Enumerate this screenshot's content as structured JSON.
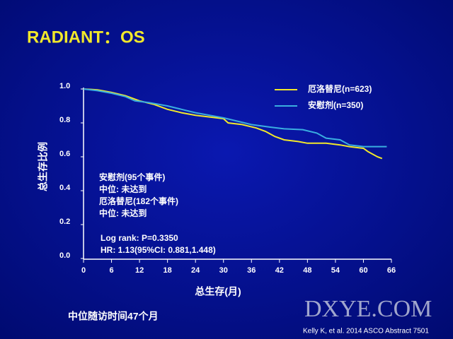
{
  "chart_data": {
    "type": "line",
    "title": "RADIANT：OS",
    "xlabel": "总生存(月)",
    "ylabel": "总生存比例",
    "xlim": [
      0,
      66
    ],
    "ylim": [
      0,
      1
    ],
    "xticks": [
      0,
      6,
      12,
      18,
      24,
      30,
      36,
      42,
      48,
      54,
      60,
      66
    ],
    "yticks": [
      {
        "value": 0,
        "label": "0.0"
      },
      0.2,
      0.4,
      0.6,
      0.8,
      {
        "value": 1,
        "label": "1.0"
      }
    ],
    "legend": "upper right",
    "series": [
      {
        "name": "厄洛替尼(n=623)",
        "color": "#f2e82a",
        "x": [
          0,
          3,
          6,
          9,
          12,
          15,
          18,
          21,
          24,
          27,
          30,
          31,
          34,
          37,
          39,
          41,
          43,
          46,
          48,
          52,
          55,
          57,
          60,
          61,
          63,
          64
        ],
        "values": [
          1.0,
          0.995,
          0.98,
          0.96,
          0.93,
          0.91,
          0.88,
          0.86,
          0.845,
          0.835,
          0.825,
          0.8,
          0.79,
          0.77,
          0.75,
          0.72,
          0.7,
          0.69,
          0.68,
          0.68,
          0.67,
          0.66,
          0.65,
          0.63,
          0.6,
          0.59
        ]
      },
      {
        "name": "安慰剂(n=350)",
        "color": "#3aaee0",
        "x": [
          0,
          3,
          6,
          9,
          11,
          14,
          18,
          21,
          24,
          27,
          30,
          33,
          36,
          40,
          43,
          47,
          50,
          52,
          55,
          57,
          60,
          63,
          65
        ],
        "values": [
          1.0,
          0.99,
          0.975,
          0.955,
          0.93,
          0.92,
          0.9,
          0.88,
          0.86,
          0.845,
          0.83,
          0.81,
          0.79,
          0.775,
          0.765,
          0.76,
          0.74,
          0.71,
          0.7,
          0.67,
          0.66,
          0.66,
          0.66
        ]
      }
    ],
    "annotations": [
      "安慰剂(95个事件)",
      "中位: 未达到",
      "厄洛替尼(182个事件)",
      "中位: 未达到",
      "Log rank: P=0.3350",
      "HR: 1.13(95%CI: 0.881,1.448)"
    ],
    "footnote": "中位随访时间47个月",
    "citation": "Kelly K, et al. 2014 ASCO Abstract 7501",
    "watermark": "DXYE.COM"
  }
}
